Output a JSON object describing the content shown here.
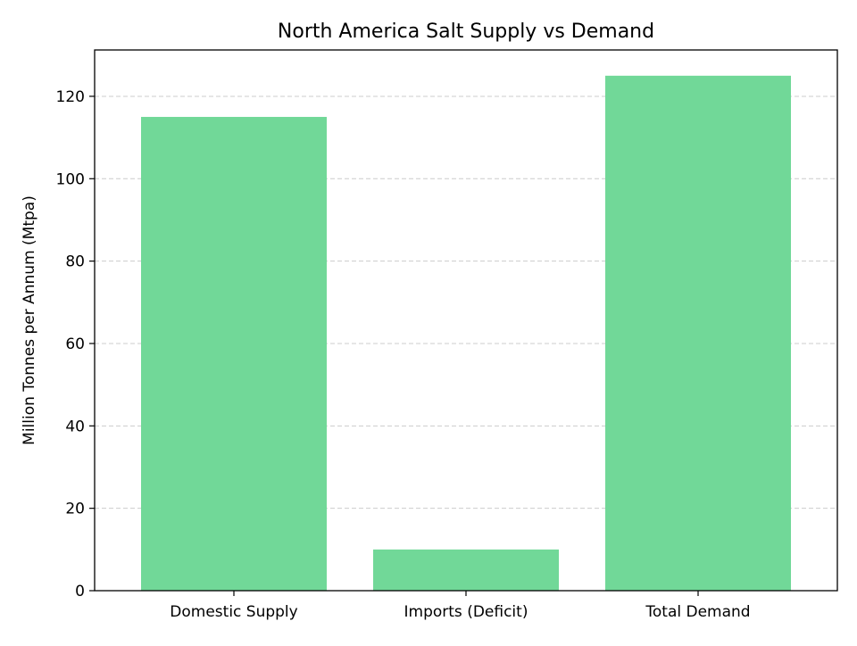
{
  "chart_data": {
    "type": "bar",
    "title": "North America Salt Supply vs Demand",
    "xlabel": "",
    "ylabel": "Million Tonnes per Annum (Mtpa)",
    "categories": [
      "Domestic Supply",
      "Imports (Deficit)",
      "Total Demand"
    ],
    "values": [
      115,
      10,
      125
    ],
    "ylim": [
      0,
      131.25
    ],
    "yticks": [
      0,
      20,
      40,
      60,
      80,
      100,
      120
    ],
    "grid": "y-dashed",
    "legend": "none",
    "colors": {
      "bar": "#71d898",
      "grid": "#cccccc",
      "axis": "#000000"
    }
  }
}
